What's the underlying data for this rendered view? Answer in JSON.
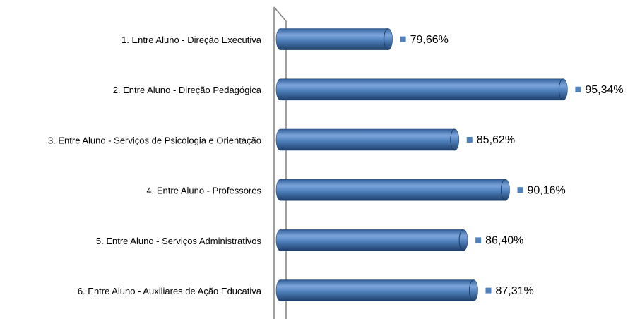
{
  "chart_data": {
    "type": "bar",
    "orientation": "horizontal",
    "categories": [
      "1. Entre Aluno - Direção Executiva",
      "2. Entre Aluno - Direção Pedagógica",
      "3. Entre Aluno - Serviços de Psicologia e Orientação",
      "4. Entre Aluno - Professores",
      "5. Entre Aluno - Serviços Administrativos",
      "6. Entre Aluno - Auxiliares de Ação Educativa"
    ],
    "values": [
      79.66,
      95.34,
      85.62,
      90.16,
      86.4,
      87.31
    ],
    "value_labels": [
      "79,66%",
      "95,34%",
      "85,62%",
      "90,16%",
      "86,40%",
      "87,31%"
    ],
    "color": "#4f81bd",
    "xlim": [
      70,
      100
    ]
  }
}
